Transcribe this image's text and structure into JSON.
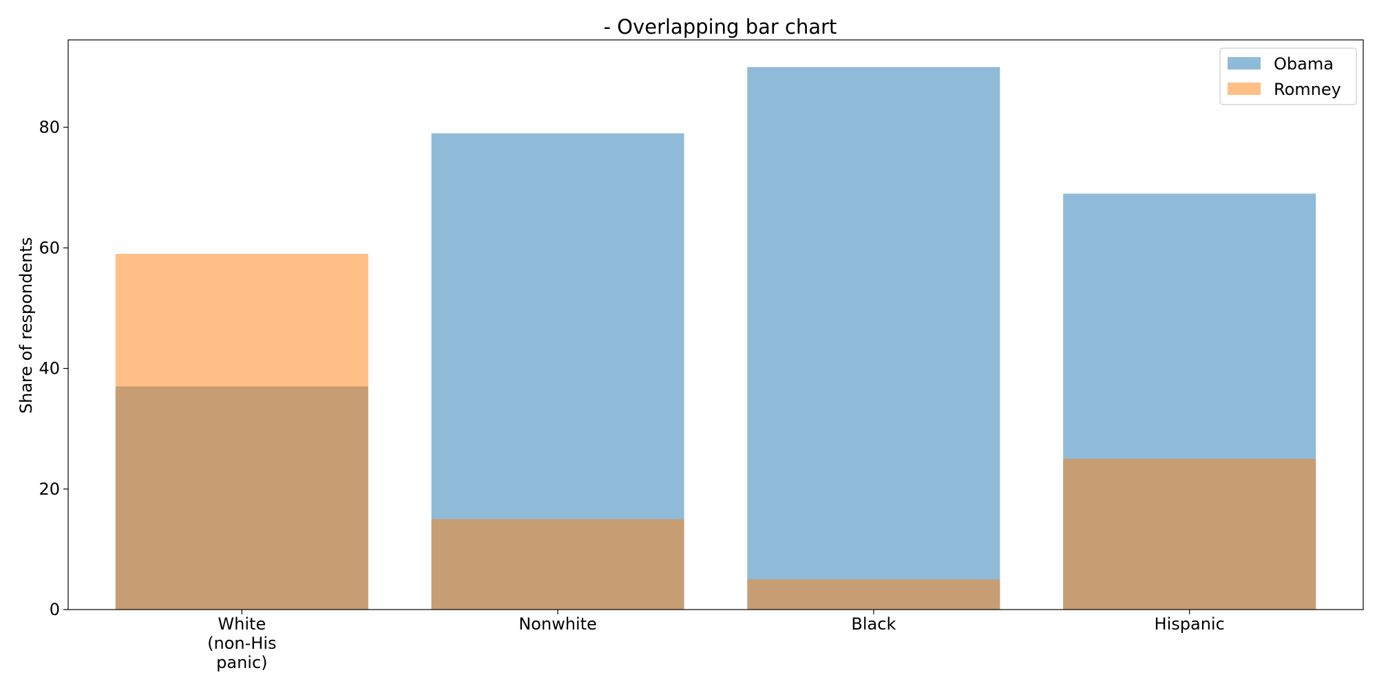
{
  "chart_data": {
    "type": "bar",
    "title": "- Overlapping bar chart",
    "xlabel": "",
    "ylabel": "Share of respondents",
    "categories": [
      [
        "White",
        "(non-His",
        "panic)"
      ],
      [
        "Nonwhite"
      ],
      [
        "Black"
      ],
      [
        "Hispanic"
      ]
    ],
    "series": [
      {
        "name": "Obama",
        "values": [
          37,
          79,
          90,
          69
        ],
        "color": "#1f77b4",
        "alpha": 0.5
      },
      {
        "name": "Romney",
        "values": [
          59,
          15,
          5,
          25
        ],
        "color": "#ff7f0e",
        "alpha": 0.5
      }
    ],
    "ylim": [
      0,
      94.5
    ],
    "yticks": [
      0,
      20,
      40,
      60,
      80
    ],
    "grid": false,
    "legend_position": "top-right"
  }
}
